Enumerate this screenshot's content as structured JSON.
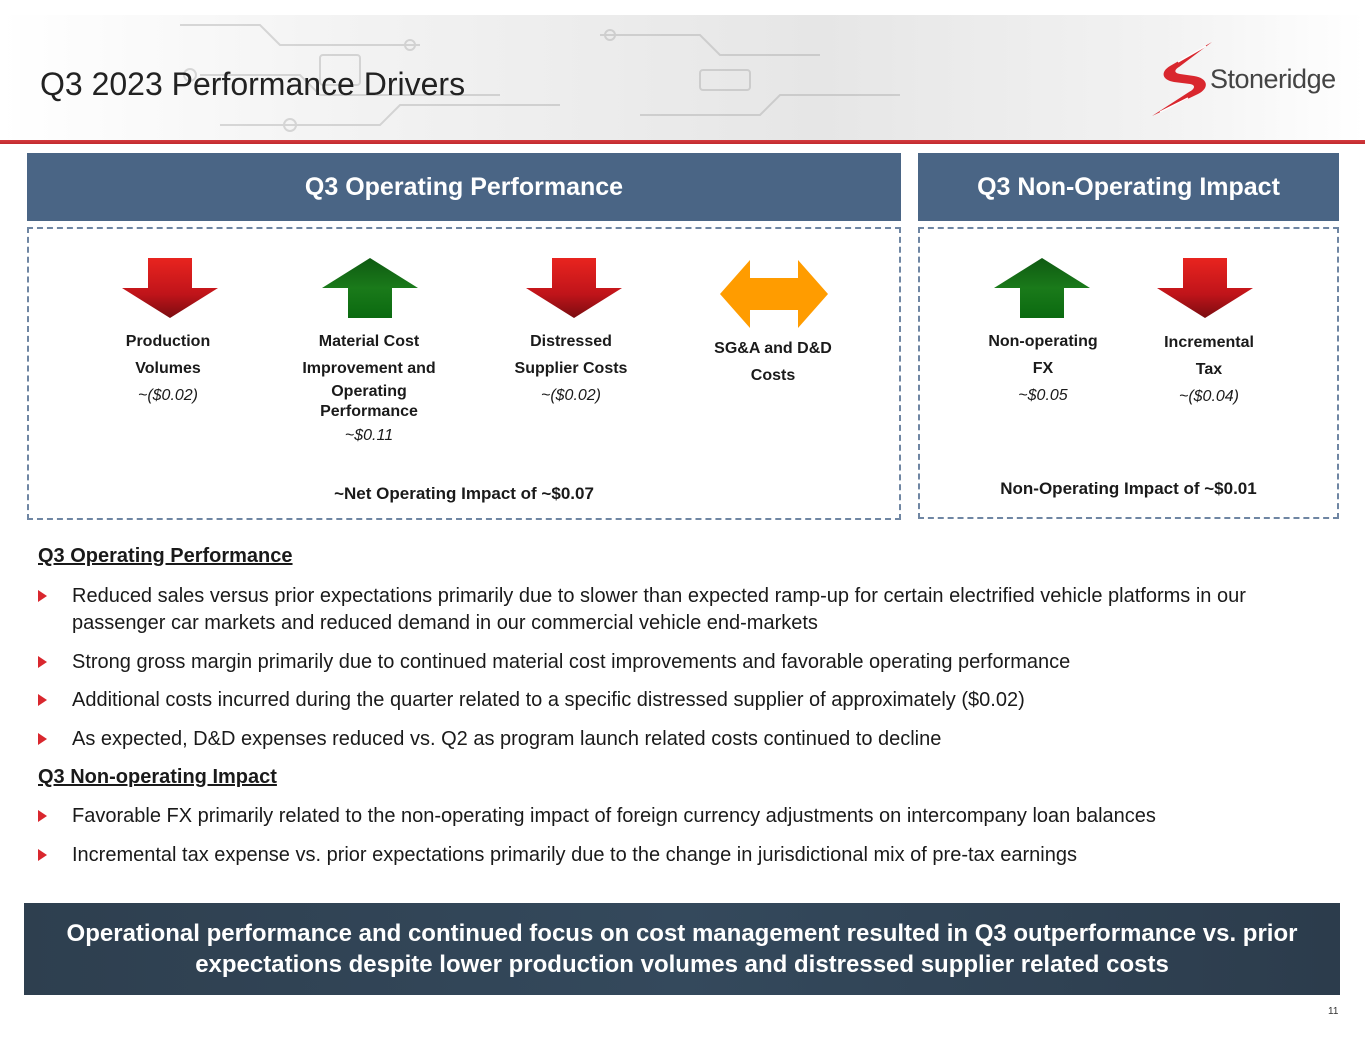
{
  "page": {
    "title": "Q3 2023 Performance Drivers",
    "logo_text": "Stoneridge",
    "page_number": "11"
  },
  "colors": {
    "accent_red": "#c8282c",
    "panel_blue": "#4a6585",
    "arrow_down_red": "#cc1a1a",
    "arrow_up_green": "#1a7a1a",
    "arrow_neutral_orange": "#ff9c00"
  },
  "operating_panel": {
    "header": "Q3 Operating Performance",
    "drivers": [
      {
        "label_line1": "Production",
        "label_line2": "Volumes",
        "value": "~($0.02)",
        "direction": "down",
        "icon": "down-arrow-icon"
      },
      {
        "label_line1": "Material Cost",
        "label_line2": "Improvement and",
        "label_line3": "Operating",
        "label_line4": "Performance",
        "value": "~$0.11",
        "direction": "up",
        "icon": "up-arrow-icon"
      },
      {
        "label_line1": "Distressed",
        "label_line2": "Supplier Costs",
        "value": "~($0.02)",
        "direction": "down",
        "icon": "down-arrow-icon"
      },
      {
        "label_line1": "SG&A and D&D",
        "label_line2": "Costs",
        "direction": "neutral",
        "icon": "double-arrow-icon"
      }
    ],
    "net": "~Net Operating Impact of ~$0.07"
  },
  "non_operating_panel": {
    "header": "Q3 Non-Operating Impact",
    "drivers": [
      {
        "label_line1": "Non-operating",
        "label_line2": "FX",
        "value": "~$0.05",
        "direction": "up",
        "icon": "up-arrow-icon"
      },
      {
        "label_line1": "Incremental",
        "label_line2": "Tax",
        "value": "~($0.04)",
        "direction": "down",
        "icon": "down-arrow-icon"
      }
    ],
    "net": "Non-Operating Impact of ~$0.01"
  },
  "details": {
    "operating_heading": "Q3 Operating Performance",
    "operating_bullets": [
      "Reduced sales versus prior expectations primarily due to slower than expected ramp-up for certain electrified vehicle platforms in our passenger car markets and reduced demand in our commercial vehicle end-markets",
      "Strong gross margin primarily due to continued material cost improvements and favorable operating performance",
      "Additional costs incurred during the quarter related to a specific distressed supplier of approximately ($0.02)",
      "As expected, D&D expenses reduced vs. Q2 as program launch related costs continued to decline"
    ],
    "non_operating_heading": "Q3 Non-operating Impact",
    "non_operating_bullets": [
      "Favorable FX primarily related to the non-operating impact of foreign currency adjustments on intercompany loan balances",
      "Incremental tax expense vs. prior expectations primarily due to the change in jurisdictional mix of pre-tax earnings"
    ]
  },
  "footer": {
    "message": "Operational performance and continued focus on cost management resulted in Q3 outperformance vs. prior expectations despite lower production volumes and distressed supplier related costs"
  }
}
